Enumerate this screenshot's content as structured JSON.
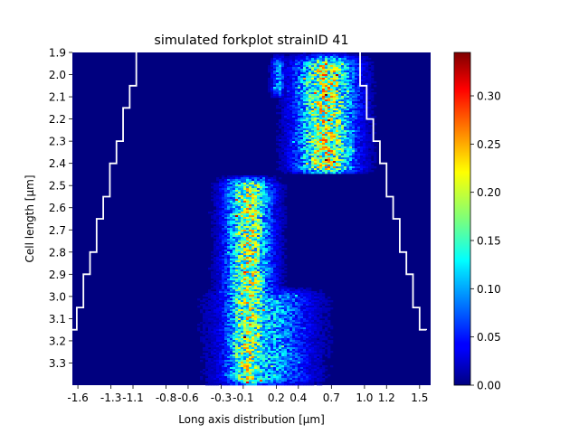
{
  "chart_data": {
    "type": "heatmap",
    "title": "simulated forkplot strainID 41",
    "xlabel": "Long axis distribution [μm]",
    "ylabel": "Cell length [μm]",
    "xlim": [
      -1.65,
      1.6
    ],
    "ylim": [
      1.9,
      3.4
    ],
    "y_inverted": true,
    "x_ticks": [
      -1.6,
      -1.3,
      -1.1,
      -0.8,
      -0.6,
      -0.3,
      -0.1,
      0.2,
      0.4,
      0.7,
      1.0,
      1.2,
      1.5
    ],
    "x_tick_labels": [
      "-1.6",
      "-1.3",
      "-1.1",
      "-0.8",
      "-0.6",
      "-0.3",
      "-0.1",
      "0.2",
      "0.4",
      "0.7",
      "1.0",
      "1.2",
      "1.5"
    ],
    "y_ticks": [
      1.9,
      2.0,
      2.1,
      2.2,
      2.3,
      2.4,
      2.5,
      2.6,
      2.7,
      2.8,
      2.9,
      3.0,
      3.1,
      3.2,
      3.3
    ],
    "y_tick_labels": [
      "1.9",
      "2.0",
      "2.1",
      "2.2",
      "2.3",
      "2.4",
      "2.5",
      "2.6",
      "2.7",
      "2.8",
      "2.9",
      "3.0",
      "3.1",
      "3.2",
      "3.3"
    ],
    "colormap": "jet",
    "colorbar": {
      "vmin": 0.0,
      "vmax": 0.345,
      "ticks": [
        0.0,
        0.05,
        0.1,
        0.15,
        0.2,
        0.25,
        0.3
      ],
      "tick_labels": [
        "0.00",
        "0.05",
        "0.10",
        "0.15",
        "0.20",
        "0.25",
        "0.30"
      ]
    },
    "background_value": 0.0,
    "intensity_segments": [
      {
        "y_from": 1.9,
        "y_to": 2.45,
        "x_center": 0.65,
        "x_halfwidth": 0.22,
        "peak": 0.18
      },
      {
        "y_from": 1.9,
        "y_to": 2.1,
        "x_center": 0.22,
        "x_halfwidth": 0.05,
        "peak": 0.08
      },
      {
        "y_from": 2.45,
        "y_to": 3.4,
        "x_center": -0.05,
        "x_halfwidth": 0.17,
        "peak": 0.17
      },
      {
        "y_from": 2.95,
        "y_to": 3.4,
        "x_center": 0.1,
        "x_halfwidth": 0.32,
        "peak": 0.1
      }
    ],
    "cell_boundary": {
      "color": "#ffffff",
      "left": [
        {
          "y": 1.9,
          "x": -1.07
        },
        {
          "y": 2.05,
          "x": -1.13
        },
        {
          "y": 2.15,
          "x": -1.19
        },
        {
          "y": 2.3,
          "x": -1.25
        },
        {
          "y": 2.4,
          "x": -1.31
        },
        {
          "y": 2.55,
          "x": -1.37
        },
        {
          "y": 2.65,
          "x": -1.43
        },
        {
          "y": 2.8,
          "x": -1.49
        },
        {
          "y": 2.9,
          "x": -1.55
        },
        {
          "y": 3.05,
          "x": -1.61
        },
        {
          "y": 3.15,
          "x": -1.65
        }
      ],
      "right": [
        {
          "y": 1.9,
          "x": 0.96
        },
        {
          "y": 2.05,
          "x": 1.02
        },
        {
          "y": 2.2,
          "x": 1.08
        },
        {
          "y": 2.3,
          "x": 1.14
        },
        {
          "y": 2.4,
          "x": 1.2
        },
        {
          "y": 2.55,
          "x": 1.26
        },
        {
          "y": 2.65,
          "x": 1.32
        },
        {
          "y": 2.8,
          "x": 1.38
        },
        {
          "y": 2.9,
          "x": 1.44
        },
        {
          "y": 3.05,
          "x": 1.5
        },
        {
          "y": 3.15,
          "x": 1.56
        }
      ]
    }
  }
}
